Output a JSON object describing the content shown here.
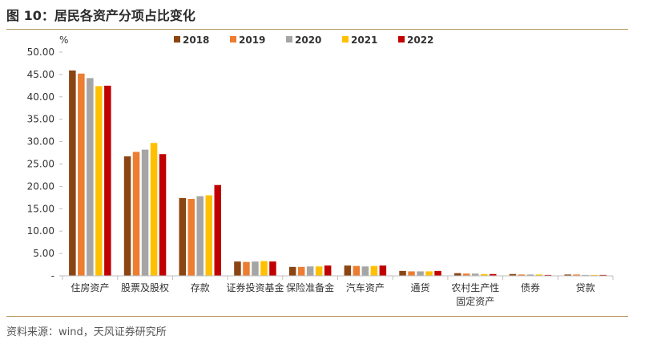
{
  "header": {
    "title": "图 10：居民各资产分项占比变化"
  },
  "footer": {
    "source": "资料来源：wind，天风证券研究所"
  },
  "chart_data": {
    "type": "bar",
    "ylabel": "%",
    "ylim": [
      0,
      50
    ],
    "yticks": [
      "50.00",
      "45.00",
      "40.00",
      "35.00",
      "30.00",
      "25.00",
      "20.00",
      "15.00",
      "10.00",
      "5.00",
      "-"
    ],
    "grid": false,
    "legend_position": "top",
    "categories": [
      "住房资产",
      "股票及股权",
      "存款",
      "证券投资基金",
      "保险准备金",
      "汽车资产",
      "通货",
      "农村生产性固定资产",
      "债券",
      "贷款"
    ],
    "category_lines": [
      [
        "住房资产"
      ],
      [
        "股票及股权"
      ],
      [
        "存款"
      ],
      [
        "证券投资基金"
      ],
      [
        "保险准备金"
      ],
      [
        "汽车资产"
      ],
      [
        "通货"
      ],
      [
        "农村生产性",
        "固定资产"
      ],
      [
        "债券"
      ],
      [
        "贷款"
      ]
    ],
    "series": [
      {
        "name": "2018",
        "color": "#8b4513",
        "values": [
          45.9,
          26.7,
          17.4,
          3.2,
          2.0,
          2.3,
          1.1,
          0.6,
          0.4,
          0.3
        ]
      },
      {
        "name": "2019",
        "color": "#ed7d31",
        "values": [
          45.2,
          27.7,
          17.2,
          3.1,
          2.0,
          2.2,
          1.0,
          0.5,
          0.3,
          0.3
        ]
      },
      {
        "name": "2020",
        "color": "#a5a5a5",
        "values": [
          44.2,
          28.2,
          17.8,
          3.2,
          2.1,
          2.1,
          1.0,
          0.5,
          0.3,
          0.2
        ]
      },
      {
        "name": "2021",
        "color": "#ffc000",
        "values": [
          42.4,
          29.7,
          18.0,
          3.3,
          2.1,
          2.2,
          1.0,
          0.4,
          0.3,
          0.2
        ]
      },
      {
        "name": "2022",
        "color": "#c00000",
        "values": [
          42.5,
          27.2,
          20.3,
          3.2,
          2.3,
          2.3,
          1.1,
          0.4,
          0.2,
          0.2
        ]
      }
    ]
  }
}
